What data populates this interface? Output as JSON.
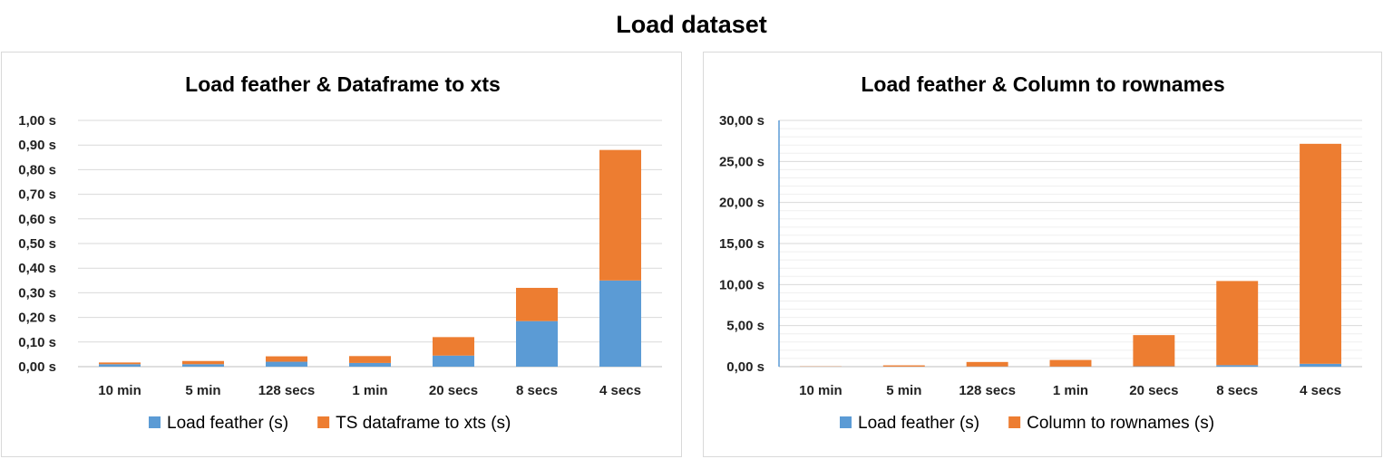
{
  "page": {
    "title": "Load dataset"
  },
  "colors": {
    "load_feather": "#5b9bd5",
    "other": "#ed7d31",
    "grid": "#d9d9d9"
  },
  "chart_data": [
    {
      "type": "bar",
      "stacked": true,
      "title": "Load feather & Dataframe to xts",
      "categories": [
        "10 min",
        "5 min",
        "128 secs",
        "1 min",
        "20 secs",
        "8 secs",
        "4 secs"
      ],
      "series": [
        {
          "name": "Load feather (s)",
          "color": "#5b9bd5",
          "values": [
            0.01,
            0.01,
            0.02,
            0.015,
            0.045,
            0.185,
            0.35
          ]
        },
        {
          "name": "TS dataframe to xts (s)",
          "color": "#ed7d31",
          "values": [
            0.007,
            0.013,
            0.022,
            0.028,
            0.075,
            0.135,
            0.53
          ]
        }
      ],
      "ylim": [
        0,
        1.0
      ],
      "yticks": [
        "0,00 s",
        "0,10 s",
        "0,20 s",
        "0,30 s",
        "0,40 s",
        "0,50 s",
        "0,60 s",
        "0,70 s",
        "0,80 s",
        "0,90 s",
        "1,00 s"
      ],
      "grid": true,
      "legend": "bottom"
    },
    {
      "type": "bar",
      "stacked": true,
      "title": "Load feather & Column to rownames",
      "categories": [
        "10 min",
        "5 min",
        "128 secs",
        "1 min",
        "20 secs",
        "8 secs",
        "4 secs"
      ],
      "series": [
        {
          "name": "Load feather (s)",
          "color": "#5b9bd5",
          "values": [
            0.01,
            0.01,
            0.02,
            0.015,
            0.045,
            0.185,
            0.35
          ]
        },
        {
          "name": "Column to rownames (s)",
          "color": "#ed7d31",
          "values": [
            0.03,
            0.15,
            0.55,
            0.8,
            3.8,
            10.25,
            26.8
          ]
        }
      ],
      "ylim": [
        0,
        30
      ],
      "yticks": [
        "0,00 s",
        "5,00 s",
        "10,00 s",
        "15,00 s",
        "20,00 s",
        "25,00 s",
        "30,00 s"
      ],
      "grid": true,
      "minor_grid": true,
      "legend": "bottom"
    }
  ]
}
